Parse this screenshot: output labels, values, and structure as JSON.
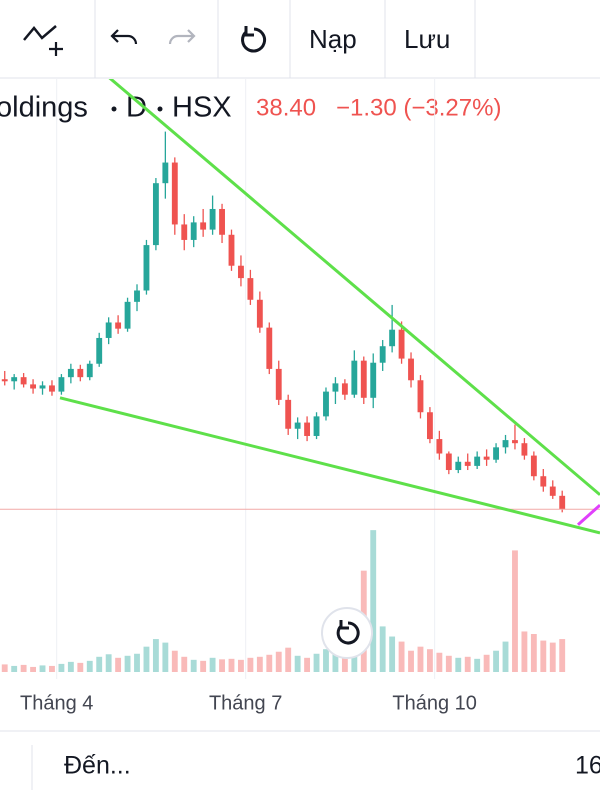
{
  "toolbar": {
    "reload": "Nạp",
    "save": "Lưu"
  },
  "header": {
    "symbol": "oldings",
    "interval": "D",
    "exchange": "HSX",
    "price": "38.40",
    "change": "−1.30 (−3.27%)"
  },
  "chart_data": {
    "type": "candlestick",
    "x": [
      0,
      1,
      2,
      3,
      4,
      5,
      6,
      7,
      8,
      9,
      10,
      11,
      12,
      13,
      14,
      15,
      16,
      17,
      18,
      19,
      20,
      21,
      22,
      23,
      24,
      25,
      26,
      27,
      28,
      29,
      30,
      31,
      32,
      33,
      34,
      35,
      36,
      37,
      38,
      39,
      40,
      41,
      42,
      43,
      44,
      45,
      46,
      47,
      48,
      49,
      50,
      51,
      52,
      53,
      54,
      55,
      56,
      57,
      58,
      59
    ],
    "open": [
      51,
      50.8,
      51.2,
      50.5,
      50.1,
      50.4,
      49.8,
      51.2,
      52,
      51.2,
      52.5,
      55,
      56.5,
      55.9,
      58.5,
      59.6,
      64,
      70,
      72,
      66,
      64.5,
      66.2,
      65.5,
      67.5,
      65,
      62,
      60.8,
      58.7,
      56,
      52,
      49,
      46.2,
      46.8,
      45.5,
      47.4,
      49.8,
      50.6,
      49.5,
      52.8,
      49.2,
      52.6,
      54.2,
      55.8,
      53,
      50.9,
      47.8,
      45.2,
      43.8,
      42.2,
      43,
      42.6,
      43.5,
      43.2,
      44.4,
      45.1,
      44.8,
      43.6,
      41.6,
      40.6,
      39.7
    ],
    "high": [
      51.8,
      51.5,
      51.6,
      51,
      50.8,
      50.9,
      51.5,
      52.5,
      52.4,
      52.8,
      55.5,
      57,
      57.2,
      58.9,
      60.2,
      64.5,
      70.5,
      75,
      72.5,
      67,
      66.8,
      67.5,
      68.8,
      68,
      65.5,
      63,
      61.6,
      59.5,
      56.5,
      52.8,
      49.5,
      47.3,
      47.4,
      47.8,
      50.2,
      51.2,
      51,
      53.8,
      53.2,
      53.5,
      54.8,
      58.2,
      56.6,
      53.6,
      51.4,
      48.3,
      46,
      44,
      43.5,
      43.8,
      44,
      44.2,
      44.8,
      45.6,
      46.6,
      45.3,
      44,
      42.3,
      41.2,
      40.2
    ],
    "low": [
      50.4,
      50,
      50.2,
      49.6,
      49.5,
      49.4,
      49.5,
      50.6,
      50.8,
      50.9,
      52.2,
      54.4,
      55.4,
      55.6,
      57.6,
      59.2,
      63.5,
      68.5,
      65,
      63.5,
      63.8,
      64.8,
      65,
      64.2,
      61.5,
      60,
      58.2,
      55.5,
      51.5,
      48.5,
      45.6,
      45.2,
      45,
      45.2,
      47,
      48.6,
      49,
      49.2,
      48.6,
      48.2,
      51.8,
      53.6,
      52.5,
      50.2,
      47.2,
      44.8,
      43.2,
      41.8,
      41.9,
      42.2,
      42.3,
      42.6,
      42.9,
      43.8,
      44.2,
      43.2,
      41.2,
      40.1,
      39.4,
      38.1
    ],
    "close": [
      50.8,
      51.2,
      50.5,
      50.1,
      50.4,
      49.8,
      51.2,
      52,
      51.2,
      52.5,
      55,
      56.5,
      55.9,
      58.5,
      59.6,
      64,
      70,
      72,
      66,
      64.5,
      66.2,
      65.5,
      67.5,
      65,
      62,
      60.8,
      58.7,
      56,
      52,
      49,
      46.2,
      46.8,
      45.5,
      47.4,
      49.8,
      50.6,
      49.5,
      52.8,
      49.2,
      52.6,
      54.2,
      55.8,
      53,
      50.9,
      47.8,
      45.2,
      43.8,
      42.2,
      43,
      42.6,
      43.5,
      43.2,
      44.4,
      45.1,
      44.8,
      43.6,
      41.6,
      40.6,
      39.7,
      38.4
    ],
    "volume": [
      1.5,
      1.2,
      1.4,
      1,
      1.3,
      1.2,
      1.6,
      2,
      1.8,
      2.2,
      3,
      3.5,
      2.8,
      3.2,
      3.6,
      5,
      6.5,
      5.8,
      4.2,
      3,
      2.4,
      2.2,
      2.8,
      2.5,
      2.6,
      2.4,
      2.8,
      3,
      3.4,
      4,
      4.8,
      3.2,
      2.8,
      3.6,
      4.5,
      4.2,
      3.8,
      11,
      20,
      28,
      9,
      7,
      6,
      4.2,
      5,
      4.5,
      3.8,
      3.2,
      2.8,
      3,
      2.6,
      3.4,
      4.2,
      6,
      24,
      8,
      7.5,
      6.2,
      5.8,
      6.5
    ],
    "up_color": "#26a69a",
    "down_color": "#ef5350",
    "xlim": [
      -0.5,
      63
    ],
    "ylim": [
      36,
      80
    ],
    "volume_lim": [
      0,
      30
    ],
    "xticks": [
      {
        "value": 5.5,
        "label": "Tháng 4"
      },
      {
        "value": 25.5,
        "label": "Tháng 7"
      },
      {
        "value": 45.5,
        "label": "Tháng 10"
      }
    ],
    "grid": true,
    "trendlines": [
      {
        "color": "#5ee04a",
        "x": [
          11.1,
          63
        ],
        "y": [
          80.2,
          39.8
        ]
      },
      {
        "color": "#5ee04a",
        "x": [
          5.85,
          63
        ],
        "y": [
          49.2,
          36.1
        ]
      },
      {
        "color": "#e040fb",
        "x": [
          60.67,
          63
        ],
        "y": [
          36.9,
          38.8
        ]
      }
    ]
  },
  "footer": {
    "to": "Đến...",
    "date": "16"
  }
}
